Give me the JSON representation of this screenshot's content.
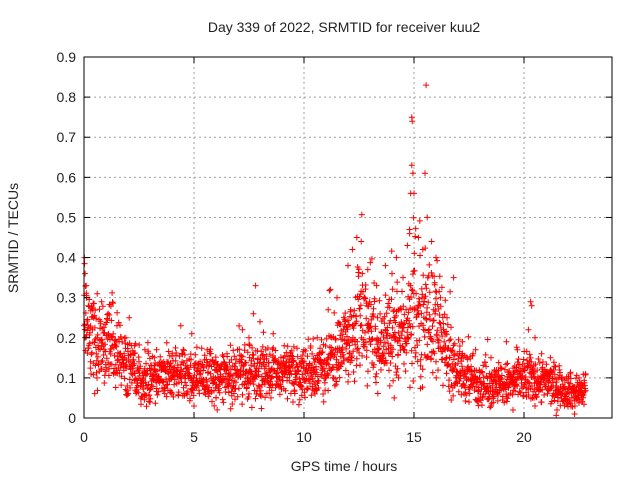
{
  "chart_data": {
    "type": "scatter",
    "title": "Day 339 of 2022, SRMTID for receiver kuu2",
    "xlabel": "GPS time / hours",
    "ylabel": "SRMTID / TECUs",
    "xlim": [
      0,
      24
    ],
    "ylim": [
      0,
      0.9
    ],
    "xticks": [
      0,
      5,
      10,
      15,
      20
    ],
    "xtick_labels": [
      "0",
      "5",
      "10",
      "15",
      "20"
    ],
    "yticks": [
      0,
      0.1,
      0.2,
      0.3,
      0.4,
      0.5,
      0.6,
      0.7,
      0.8,
      0.9
    ],
    "ytick_labels": [
      "0",
      "0.1",
      "0.2",
      "0.3",
      "0.4",
      "0.5",
      "0.6",
      "0.7",
      "0.8",
      "0.9"
    ],
    "grid": true,
    "marker": "+",
    "series": [
      {
        "name": "SRMTID",
        "color": "#ff0000",
        "profile": {
          "x": [
            0.0,
            0.25,
            0.5,
            0.75,
            1.0,
            1.5,
            2.0,
            2.5,
            3.0,
            4.0,
            5.0,
            6.0,
            7.0,
            8.0,
            9.0,
            10.0,
            11.0,
            11.5,
            12.0,
            12.5,
            13.0,
            13.5,
            14.0,
            14.5,
            15.0,
            15.5,
            16.0,
            16.5,
            17.0,
            18.0,
            19.0,
            20.0,
            21.0,
            22.0,
            22.5,
            22.8
          ],
          "y": [
            0.24,
            0.21,
            0.19,
            0.18,
            0.19,
            0.17,
            0.12,
            0.11,
            0.1,
            0.11,
            0.1,
            0.1,
            0.11,
            0.12,
            0.11,
            0.11,
            0.13,
            0.15,
            0.2,
            0.24,
            0.22,
            0.19,
            0.2,
            0.21,
            0.25,
            0.26,
            0.23,
            0.16,
            0.12,
            0.09,
            0.08,
            0.1,
            0.09,
            0.07,
            0.06,
            0.08
          ]
        },
        "values": [
          [
            0.02,
            0.4
          ],
          [
            0.05,
            0.36
          ],
          [
            0.1,
            0.33
          ],
          [
            0.12,
            0.3
          ],
          [
            0.2,
            0.28
          ],
          [
            0.4,
            0.27
          ],
          [
            0.6,
            0.31
          ],
          [
            0.8,
            0.29
          ],
          [
            1.1,
            0.26
          ],
          [
            1.5,
            0.23
          ],
          [
            1.9,
            0.2
          ],
          [
            2.3,
            0.18
          ],
          [
            3.3,
            0.17
          ],
          [
            4.4,
            0.23
          ],
          [
            4.9,
            0.21
          ],
          [
            5.6,
            0.17
          ],
          [
            6.0,
            0.14
          ],
          [
            6.5,
            0.16
          ],
          [
            7.2,
            0.22
          ],
          [
            7.5,
            0.2
          ],
          [
            7.7,
            0.26
          ],
          [
            7.8,
            0.33
          ],
          [
            8.0,
            0.24
          ],
          [
            8.6,
            0.21
          ],
          [
            9.1,
            0.18
          ],
          [
            10.0,
            0.17
          ],
          [
            10.6,
            0.2
          ],
          [
            11.1,
            0.27
          ],
          [
            11.2,
            0.32
          ],
          [
            11.5,
            0.3
          ],
          [
            12.0,
            0.38
          ],
          [
            12.2,
            0.42
          ],
          [
            12.4,
            0.45
          ],
          [
            12.6,
            0.44
          ],
          [
            12.9,
            0.37
          ],
          [
            13.3,
            0.33
          ],
          [
            13.7,
            0.38
          ],
          [
            14.0,
            0.36
          ],
          [
            14.2,
            0.4
          ],
          [
            14.5,
            0.35
          ],
          [
            14.7,
            0.43
          ],
          [
            14.8,
            0.47
          ],
          [
            14.85,
            0.56
          ],
          [
            14.9,
            0.63
          ],
          [
            14.95,
            0.61
          ],
          [
            14.9,
            0.75
          ],
          [
            14.92,
            0.74
          ],
          [
            15.0,
            0.56
          ],
          [
            15.2,
            0.45
          ],
          [
            15.4,
            0.42
          ],
          [
            15.5,
            0.61
          ],
          [
            15.55,
            0.83
          ],
          [
            15.6,
            0.5
          ],
          [
            15.8,
            0.44
          ],
          [
            16.0,
            0.4
          ],
          [
            16.2,
            0.3
          ],
          [
            16.5,
            0.25
          ],
          [
            16.8,
            0.35
          ],
          [
            17.2,
            0.19
          ],
          [
            17.8,
            0.17
          ],
          [
            18.5,
            0.15
          ],
          [
            19.2,
            0.19
          ],
          [
            19.7,
            0.17
          ],
          [
            20.2,
            0.22
          ],
          [
            20.3,
            0.29
          ],
          [
            20.35,
            0.28
          ],
          [
            20.5,
            0.2
          ],
          [
            20.8,
            0.16
          ],
          [
            21.2,
            0.15
          ],
          [
            21.6,
            0.13
          ],
          [
            22.1,
            0.11
          ],
          [
            22.5,
            0.1
          ],
          [
            22.8,
            0.11
          ],
          [
            0.3,
            0.14
          ],
          [
            1.0,
            0.12
          ],
          [
            2.0,
            0.06
          ],
          [
            3.0,
            0.04
          ],
          [
            4.0,
            0.06
          ],
          [
            5.0,
            0.03
          ],
          [
            6.0,
            0.05
          ],
          [
            7.5,
            0.06
          ],
          [
            8.5,
            0.05
          ],
          [
            9.5,
            0.04
          ],
          [
            10.5,
            0.06
          ],
          [
            12.0,
            0.09
          ],
          [
            13.5,
            0.12
          ],
          [
            13.9,
            0.08
          ],
          [
            14.1,
            0.05
          ],
          [
            14.3,
            0.1
          ],
          [
            15.3,
            0.13
          ],
          [
            16.0,
            0.14
          ],
          [
            17.5,
            0.04
          ],
          [
            18.5,
            0.03
          ],
          [
            19.5,
            0.02
          ],
          [
            20.5,
            0.03
          ],
          [
            21.5,
            0.02
          ],
          [
            22.3,
            0.01
          ]
        ]
      }
    ]
  }
}
